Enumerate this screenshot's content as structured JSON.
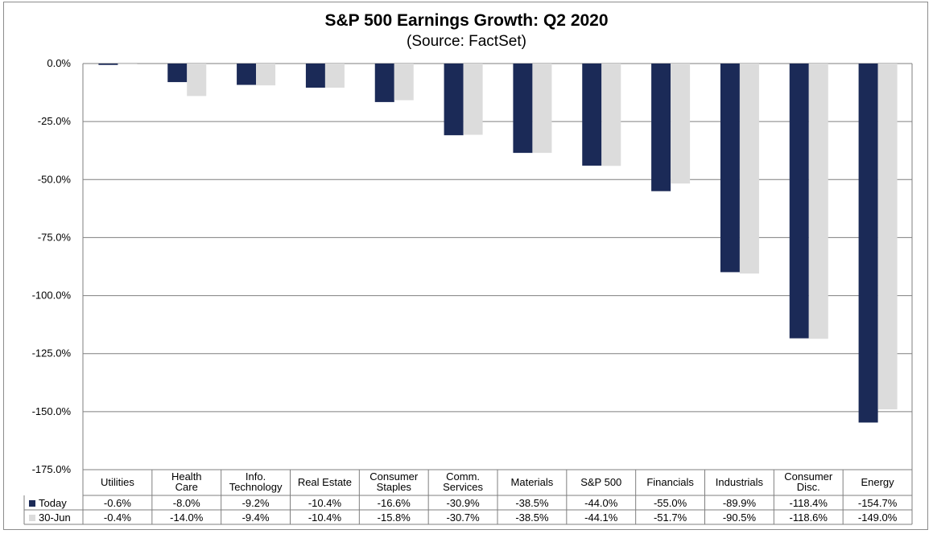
{
  "chart_data": {
    "type": "bar",
    "title": "S&P 500 Earnings Growth: Q2 2020",
    "subtitle": "(Source: FactSet)",
    "xlabel": "",
    "ylabel": "",
    "ylim": [
      -175,
      0
    ],
    "yticks": [
      0,
      -25,
      -50,
      -75,
      -100,
      -125,
      -150,
      -175
    ],
    "ytick_labels": [
      "0.0%",
      "-25.0%",
      "-50.0%",
      "-75.0%",
      "-100.0%",
      "-125.0%",
      "-150.0%",
      "-175.0%"
    ],
    "grid": true,
    "legend_placement": "data-table-left",
    "categories": [
      [
        "Utilities"
      ],
      [
        "Health",
        "Care"
      ],
      [
        "Info.",
        "Technology"
      ],
      [
        "Real Estate"
      ],
      [
        "Consumer",
        "Staples"
      ],
      [
        "Comm.",
        "Services"
      ],
      [
        "Materials"
      ],
      [
        "S&P 500"
      ],
      [
        "Financials"
      ],
      [
        "Industrials"
      ],
      [
        "Consumer",
        "Disc."
      ],
      [
        "Energy"
      ]
    ],
    "series": [
      {
        "name": "Today",
        "color": "#1b2a57",
        "values": [
          -0.6,
          -8.0,
          -9.2,
          -10.4,
          -16.6,
          -30.9,
          -38.5,
          -44.0,
          -55.0,
          -89.9,
          -118.4,
          -154.7
        ],
        "labels": [
          "-0.6%",
          "-8.0%",
          "-9.2%",
          "-10.4%",
          "-16.6%",
          "-30.9%",
          "-38.5%",
          "-44.0%",
          "-55.0%",
          "-89.9%",
          "-118.4%",
          "-154.7%"
        ]
      },
      {
        "name": "30-Jun",
        "color": "#dcdcdc",
        "values": [
          -0.4,
          -14.0,
          -9.4,
          -10.4,
          -15.8,
          -30.7,
          -38.5,
          -44.1,
          -51.7,
          -90.5,
          -118.6,
          -149.0
        ],
        "labels": [
          "-0.4%",
          "-14.0%",
          "-9.4%",
          "-10.4%",
          "-15.8%",
          "-30.7%",
          "-38.5%",
          "-44.1%",
          "-51.7%",
          "-90.5%",
          "-118.6%",
          "-149.0%"
        ]
      }
    ]
  }
}
